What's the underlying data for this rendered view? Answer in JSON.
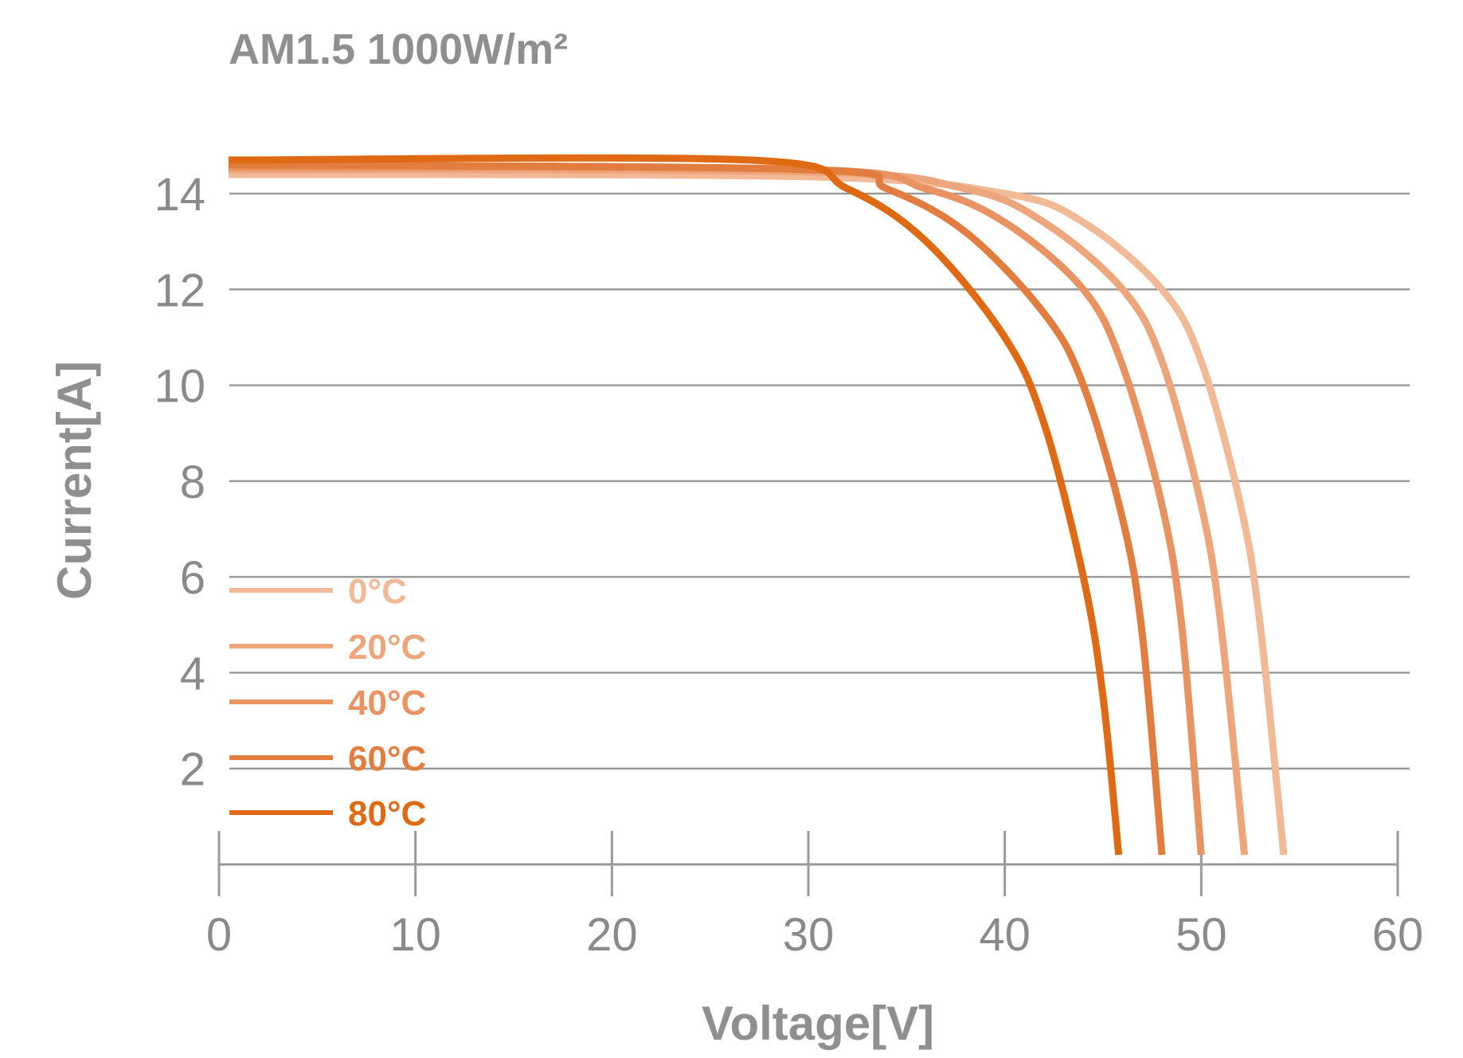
{
  "chart_data": {
    "type": "line",
    "title": "AM1.5 1000W/m²",
    "xlabel": "Voltage[V]",
    "ylabel": "Current[A]",
    "xlim": [
      0,
      60
    ],
    "ylim": [
      0,
      15
    ],
    "x_ticks": [
      0,
      10,
      20,
      30,
      40,
      50,
      60
    ],
    "y_ticks": [
      2,
      4,
      6,
      8,
      10,
      12,
      14
    ],
    "grid": "horizontal",
    "legend_position": "bottom-left",
    "series": [
      {
        "name": "0°C",
        "color": "#f2b997",
        "isc": 14.4,
        "voc": 54.2,
        "x": [
          0,
          30,
          40,
          44,
          48,
          50,
          52,
          53,
          54.2
        ],
        "y": [
          14.4,
          14.35,
          14.0,
          13.4,
          12.0,
          10.5,
          7.5,
          5.0,
          0.2
        ]
      },
      {
        "name": "20°C",
        "color": "#eda67c",
        "isc": 14.5,
        "voc": 52.2,
        "x": [
          0,
          30,
          38,
          42,
          46,
          48,
          50,
          51,
          52.2
        ],
        "y": [
          14.5,
          14.45,
          14.1,
          13.4,
          12.0,
          10.5,
          7.5,
          5.0,
          0.2
        ]
      },
      {
        "name": "40°C",
        "color": "#e89361",
        "isc": 14.55,
        "voc": 50.0,
        "x": [
          0,
          30,
          36,
          40,
          44,
          46,
          48,
          49,
          50.0
        ],
        "y": [
          14.55,
          14.5,
          14.1,
          13.4,
          12.0,
          10.4,
          7.5,
          5.0,
          0.2
        ]
      },
      {
        "name": "60°C",
        "color": "#e27d3f",
        "isc": 14.6,
        "voc": 48.0,
        "x": [
          0,
          30,
          34,
          38,
          42,
          44,
          46,
          47,
          48.0
        ],
        "y": [
          14.6,
          14.5,
          14.1,
          13.2,
          11.5,
          10.0,
          7.2,
          4.8,
          0.2
        ]
      },
      {
        "name": "80°C",
        "color": "#e06a14",
        "isc": 14.7,
        "voc": 45.8,
        "x": [
          0,
          27,
          32,
          36,
          40,
          42,
          44,
          45,
          45.8
        ],
        "y": [
          14.7,
          14.7,
          14.1,
          13.0,
          11.0,
          9.2,
          6.0,
          3.5,
          0.2
        ]
      }
    ]
  }
}
